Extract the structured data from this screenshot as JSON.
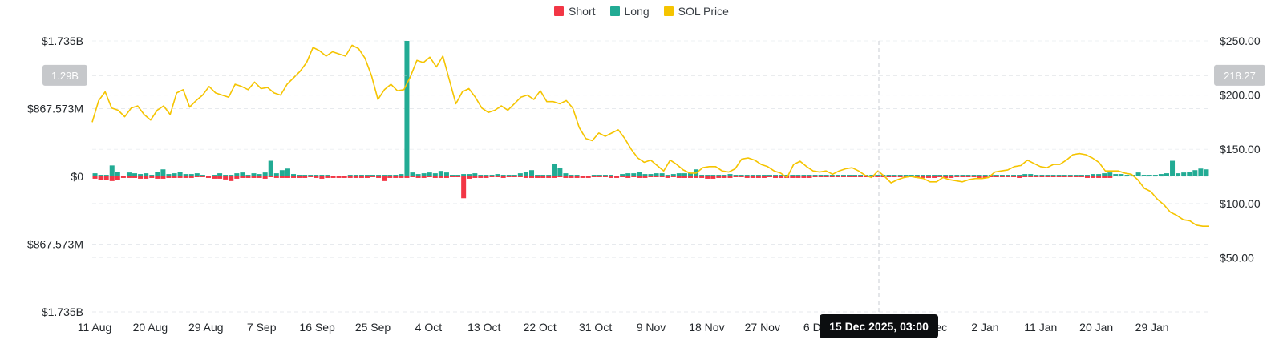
{
  "legend": {
    "items": [
      {
        "label": "Short",
        "color": "#f23645"
      },
      {
        "label": "Long",
        "color": "#22ab94"
      },
      {
        "label": "SOL Price",
        "color": "#f5c400"
      }
    ]
  },
  "crosshair": {
    "tooltip": "15 Dec 2025, 03:00",
    "left_value_label": "1.29B",
    "right_value_label": "218.27"
  },
  "chart_data": {
    "type": "bar",
    "x_tick_labels": [
      "11 Aug",
      "20 Aug",
      "29 Aug",
      "7 Sep",
      "16 Sep",
      "25 Sep",
      "4 Oct",
      "13 Oct",
      "22 Oct",
      "31 Oct",
      "9 Nov",
      "18 Nov",
      "27 Nov",
      "6 Dec",
      "15 Dec",
      "24 Dec",
      "2 Jan",
      "11 Jan",
      "20 Jan",
      "29 Jan"
    ],
    "left_axis": {
      "tick_labels": [
        "$1.735B",
        "$867.573M",
        "$0",
        "$867.573M",
        "$1.735B"
      ],
      "range": [
        -1.735,
        1.735
      ],
      "unit": "B"
    },
    "right_axis": {
      "tick_labels": [
        "$250.00",
        "$200.00",
        "$150.00",
        "$100.00",
        "$50.00"
      ],
      "range": [
        0,
        250
      ]
    },
    "series": [
      {
        "name": "Short",
        "values": [
          -0.03,
          -0.05,
          -0.05,
          -0.06,
          -0.05,
          -0.02,
          -0.02,
          -0.02,
          -0.03,
          -0.03,
          -0.02,
          -0.03,
          -0.03,
          -0.02,
          -0.02,
          -0.02,
          -0.02,
          -0.02,
          -0.01,
          -0.01,
          -0.02,
          -0.03,
          -0.03,
          -0.04,
          -0.06,
          -0.03,
          -0.02,
          -0.02,
          -0.02,
          -0.02,
          -0.03,
          -0.01,
          -0.02,
          -0.02,
          -0.02,
          -0.02,
          -0.02,
          -0.02,
          -0.01,
          -0.02,
          -0.03,
          -0.02,
          -0.02,
          -0.02,
          -0.02,
          -0.02,
          -0.02,
          -0.02,
          -0.02,
          -0.01,
          -0.02,
          -0.06,
          -0.02,
          -0.02,
          -0.02,
          -0.02,
          -0.01,
          -0.02,
          -0.02,
          -0.01,
          -0.02,
          -0.02,
          -0.02,
          -0.01,
          -0.01,
          -0.28,
          -0.03,
          -0.02,
          -0.02,
          -0.02,
          -0.01,
          -0.01,
          -0.02,
          -0.01,
          -0.01,
          -0.01,
          -0.02,
          -0.02,
          -0.02,
          -0.02,
          -0.02,
          -0.02,
          -0.01,
          -0.02,
          -0.02,
          -0.02,
          -0.02,
          -0.02,
          -0.01,
          -0.01,
          -0.01,
          -0.02,
          -0.02,
          -0.01,
          -0.02,
          -0.01,
          -0.02,
          -0.02,
          -0.01,
          -0.01,
          -0.01,
          -0.02,
          -0.01,
          -0.02,
          -0.02,
          -0.02,
          -0.02,
          -0.02,
          -0.03,
          -0.03,
          -0.02,
          -0.02,
          -0.02,
          -0.01,
          -0.01,
          -0.02,
          -0.02,
          -0.02,
          -0.02,
          -0.01,
          -0.02,
          -0.02,
          -0.02,
          -0.02,
          -0.02,
          -0.02,
          -0.02,
          -0.01,
          -0.01,
          -0.01,
          -0.01,
          -0.01,
          -0.01,
          -0.01,
          -0.01,
          -0.01,
          -0.01,
          -0.01,
          -0.01,
          -0.01,
          -0.01,
          -0.01,
          -0.01,
          -0.01,
          -0.01,
          -0.02,
          -0.02,
          -0.02,
          -0.02,
          -0.01,
          -0.02,
          -0.02,
          -0.01,
          -0.01,
          -0.01,
          -0.01,
          -0.02,
          -0.02,
          -0.01,
          -0.01,
          -0.01,
          -0.01,
          -0.01,
          -0.02,
          -0.01,
          -0.01,
          -0.01,
          -0.01,
          -0.01,
          -0.01,
          -0.01,
          -0.01,
          -0.01,
          -0.01,
          -0.01,
          -0.02,
          -0.02,
          -0.02,
          -0.02,
          -0.02
        ]
      },
      {
        "name": "Long",
        "values": [
          0.04,
          0.02,
          0.02,
          0.14,
          0.06,
          0.01,
          0.05,
          0.04,
          0.03,
          0.04,
          0.02,
          0.06,
          0.09,
          0.03,
          0.04,
          0.06,
          0.03,
          0.03,
          0.04,
          0.02,
          0.01,
          0.02,
          0.04,
          0.02,
          0.02,
          0.04,
          0.05,
          0.02,
          0.04,
          0.03,
          0.05,
          0.2,
          0.04,
          0.08,
          0.1,
          0.03,
          0.02,
          0.02,
          0.02,
          0.02,
          0.02,
          0.02,
          0.01,
          0.01,
          0.01,
          0.02,
          0.02,
          0.02,
          0.02,
          0.02,
          0.02,
          0.02,
          0.02,
          0.02,
          0.03,
          1.735,
          0.05,
          0.03,
          0.04,
          0.05,
          0.04,
          0.07,
          0.05,
          0.02,
          0.02,
          0.03,
          0.03,
          0.04,
          0.02,
          0.02,
          0.02,
          0.03,
          0.02,
          0.02,
          0.02,
          0.04,
          0.06,
          0.08,
          0.02,
          0.02,
          0.02,
          0.16,
          0.11,
          0.04,
          0.02,
          0.02,
          0.01,
          0.01,
          0.02,
          0.02,
          0.02,
          0.02,
          0.01,
          0.03,
          0.04,
          0.04,
          0.06,
          0.03,
          0.03,
          0.04,
          0.04,
          0.02,
          0.03,
          0.04,
          0.04,
          0.04,
          0.09,
          0.02,
          0.02,
          0.02,
          0.02,
          0.02,
          0.03,
          0.02,
          0.02,
          0.02,
          0.02,
          0.02,
          0.02,
          0.02,
          0.02,
          0.02,
          0.02,
          0.02,
          0.02,
          0.02,
          0.02,
          0.02,
          0.02,
          0.02,
          0.02,
          0.02,
          0.02,
          0.02,
          0.02,
          0.02,
          0.02,
          0.02,
          0.02,
          0.02,
          0.02,
          0.02,
          0.02,
          0.02,
          0.02,
          0.02,
          0.02,
          0.02,
          0.02,
          0.02,
          0.02,
          0.02,
          0.02,
          0.02,
          0.02,
          0.02,
          0.02,
          0.02,
          0.02,
          0.02,
          0.02,
          0.02,
          0.02,
          0.02,
          0.03,
          0.03,
          0.02,
          0.02,
          0.02,
          0.02,
          0.02,
          0.02,
          0.02,
          0.02,
          0.02,
          0.02,
          0.03,
          0.03,
          0.04,
          0.05,
          0.03,
          0.03,
          0.02,
          0.02,
          0.05,
          0.02,
          0.02,
          0.02,
          0.03,
          0.04,
          0.2,
          0.04,
          0.05,
          0.06,
          0.08,
          0.1,
          0.09
        ]
      },
      {
        "name": "SOL Price",
        "values": [
          175,
          195,
          203,
          188,
          186,
          180,
          188,
          190,
          182,
          177,
          186,
          190,
          182,
          202,
          205,
          189,
          195,
          200,
          208,
          202,
          200,
          198,
          210,
          208,
          205,
          212,
          206,
          207,
          202,
          200,
          210,
          216,
          222,
          230,
          244,
          241,
          236,
          240,
          238,
          236,
          246,
          243,
          234,
          218,
          196,
          205,
          210,
          204,
          205,
          217,
          232,
          230,
          235,
          226,
          236,
          214,
          192,
          203,
          206,
          198,
          188,
          184,
          186,
          190,
          186,
          192,
          198,
          200,
          196,
          204,
          194,
          194,
          192,
          195,
          188,
          170,
          160,
          158,
          165,
          162,
          165,
          168,
          160,
          150,
          142,
          138,
          140,
          135,
          130,
          140,
          136,
          131,
          128,
          128,
          133,
          134,
          134,
          130,
          129,
          132,
          141,
          142,
          140,
          136,
          134,
          130,
          128,
          124,
          136,
          139,
          134,
          130,
          129,
          130,
          127,
          130,
          132,
          133,
          130,
          126,
          124,
          130,
          125,
          119,
          122,
          124,
          125,
          124,
          123,
          120,
          120,
          124,
          122,
          121,
          120,
          122,
          123,
          123,
          124,
          129,
          130,
          131,
          134,
          135,
          140,
          137,
          134,
          133,
          136,
          136,
          140,
          145,
          146,
          145,
          142,
          138,
          130,
          130,
          130,
          128,
          127,
          122,
          114,
          111,
          104,
          99,
          92,
          89,
          85,
          84,
          80,
          79,
          79
        ]
      }
    ]
  }
}
